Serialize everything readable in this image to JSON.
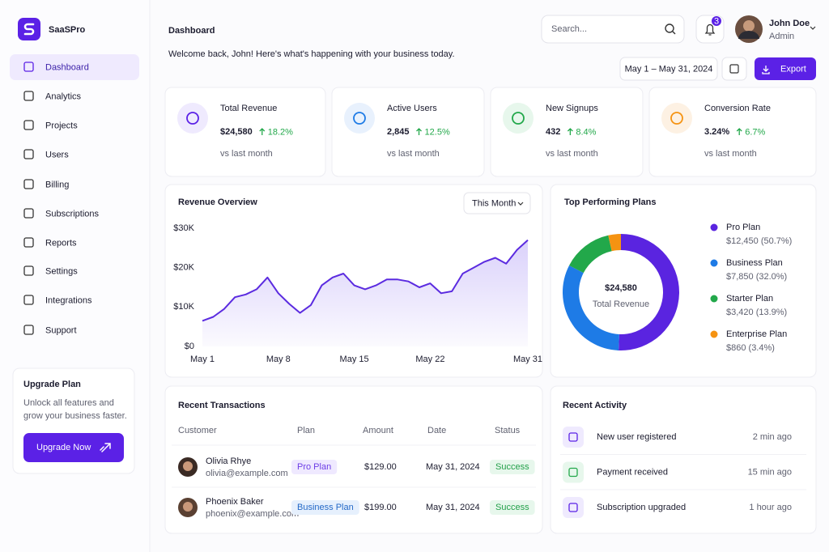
{
  "brand": "SaaSPro",
  "nav": [
    "Dashboard",
    "Analytics",
    "Projects",
    "Users",
    "Billing",
    "Subscriptions",
    "Reports",
    "Settings",
    "Integrations",
    "Support"
  ],
  "upgrade": {
    "title": "Upgrade Plan",
    "text": [
      "Unlock all features and",
      "grow your business faster."
    ],
    "button": "Upgrade Now"
  },
  "header": {
    "title": "Dashboard",
    "subtitle": "Welcome back, John! Here's what's happening with your business today.",
    "search": "Search...",
    "notifications": 3,
    "user": "John Doe",
    "role": "Admin",
    "date_range": "May 1 – May 31, 2024",
    "export": "Export"
  },
  "kpis": [
    {
      "label": "Total Revenue",
      "value": "$24,580",
      "change": "18.2%",
      "note": "vs last month"
    },
    {
      "label": "Active Users",
      "value": "2,845",
      "change": "12.5%",
      "note": "vs last month"
    },
    {
      "label": "New Signups",
      "value": "432",
      "change": "8.4%",
      "note": "vs last month"
    },
    {
      "label": "Conversion Rate",
      "value": "3.24%",
      "change": "6.7%",
      "note": "vs last month"
    }
  ],
  "revenue_chart": {
    "type": "line",
    "title": "Revenue Overview",
    "filter": "This Month",
    "categories": [
      "May 1",
      null,
      null,
      null,
      null,
      null,
      null,
      "May 8",
      null,
      null,
      null,
      null,
      null,
      null,
      "May 15",
      null,
      null,
      null,
      null,
      null,
      null,
      "May 22",
      null,
      null,
      null,
      null,
      null,
      null,
      null,
      null,
      "May 31"
    ],
    "values": [
      6500,
      7500,
      9500,
      12500,
      13200,
      14500,
      17500,
      13500,
      10800,
      8500,
      10500,
      15500,
      17500,
      18500,
      15500,
      14500,
      15500,
      17000,
      17000,
      16500,
      15000,
      16000,
      13500,
      14000,
      18500,
      20000,
      21500,
      22500,
      21000,
      24500,
      27000
    ],
    "color": "#5b2be0",
    "ylim": [
      0,
      30000
    ],
    "yticks": [
      {
        "value": 0,
        "label": "$0"
      },
      {
        "value": 10000,
        "label": "$10K"
      },
      {
        "value": 20000,
        "label": "$20K"
      },
      {
        "value": 30000,
        "label": "$30K"
      }
    ],
    "grid": false
  },
  "top_plans": {
    "type": "donut",
    "title": "Top Performing Plans",
    "center_value": "$24,580",
    "center_label": "Total Revenue",
    "categories": [
      "Pro Plan",
      "Business Plan",
      "Starter Plan",
      "Enterprise Plan"
    ],
    "values": [
      12450,
      7850,
      3420,
      860
    ],
    "value_labels": [
      "$12,450 (50.7%)",
      "$7,850 (32.0%)",
      "$3,420 (13.9%)",
      "$860 (3.4%)"
    ],
    "colors": [
      "#5a24e0",
      "#1e7be6",
      "#22a84a",
      "#f59312"
    ]
  },
  "transactions": {
    "title": "Recent Transactions",
    "columns": [
      "Customer",
      "Plan",
      "Amount",
      "Date",
      "Status"
    ],
    "rows": [
      [
        "Olivia Rhye",
        "olivia@example.com",
        "Pro Plan",
        "$129.00",
        "May 31, 2024",
        "Success"
      ],
      [
        "Phoenix Baker",
        "phoenix@example.com",
        "Business Plan",
        "$199.00",
        "May 31, 2024",
        "Success"
      ]
    ]
  },
  "activity": {
    "title": "Recent Activity",
    "items": [
      {
        "text": "New user registered",
        "time": "2 min ago"
      },
      {
        "text": "Payment received",
        "time": "15 min ago"
      },
      {
        "text": "Subscription upgraded",
        "time": "1 hour ago"
      }
    ]
  }
}
